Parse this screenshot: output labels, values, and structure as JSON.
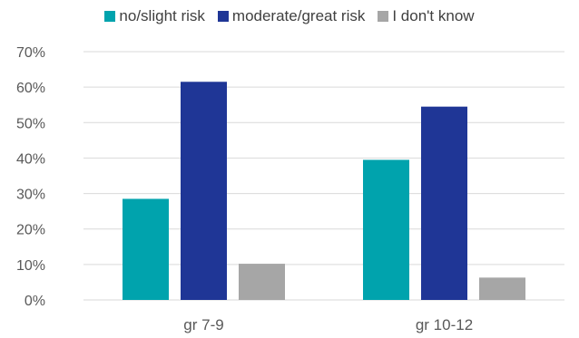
{
  "chart_data": {
    "type": "bar",
    "categories": [
      "gr 7-9",
      "gr 10-12"
    ],
    "series": [
      {
        "name": "no/slight risk",
        "color": "#00A3AD",
        "values": [
          28.5,
          39.5
        ]
      },
      {
        "name": "moderate/great risk",
        "color": "#1F3696",
        "values": [
          61.5,
          54.5
        ]
      },
      {
        "name": "I don't know",
        "color": "#A6A6A6",
        "values": [
          10.2,
          6.3
        ]
      }
    ],
    "yticks": [
      "0%",
      "10%",
      "20%",
      "30%",
      "40%",
      "50%",
      "60%",
      "70%"
    ],
    "ylim": [
      0,
      70
    ],
    "grid": true,
    "legend_position": "top"
  }
}
